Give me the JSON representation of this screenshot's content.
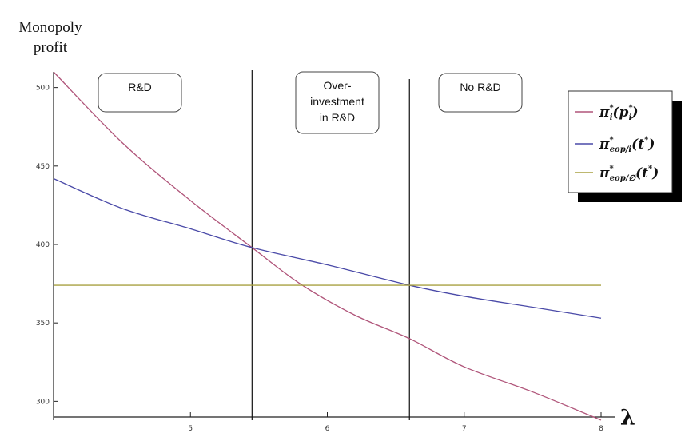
{
  "chart_data": {
    "type": "line",
    "xlabel": "λ",
    "ylabel": "Monopoly profit",
    "xlim": [
      4,
      8
    ],
    "ylim": [
      290,
      510
    ],
    "x_ticks": [
      5,
      6,
      7,
      8
    ],
    "y_ticks": [
      300,
      350,
      400,
      450,
      500
    ],
    "grid": false,
    "legend_position": "top-right",
    "series": [
      {
        "name": "π_i^*(p_i^*)",
        "color": "#b0557a",
        "x": [
          4.0,
          4.5,
          5.0,
          5.45,
          5.8,
          6.2,
          6.6,
          7.0,
          7.5,
          8.0
        ],
        "y": [
          510,
          465,
          428,
          398,
          375,
          355,
          340,
          322,
          306,
          288
        ]
      },
      {
        "name": "π_eop/i^*(t^*)",
        "color": "#4a4aa8",
        "x": [
          4.0,
          4.5,
          5.0,
          5.45,
          6.0,
          6.6,
          7.0,
          7.5,
          8.0
        ],
        "y": [
          442,
          423,
          410,
          398,
          387,
          374,
          367,
          360,
          353
        ]
      },
      {
        "name": "π_eop/∅^*(t^*)",
        "color": "#a8a040",
        "x": [
          4.0,
          8.0
        ],
        "y": [
          374,
          374
        ]
      }
    ],
    "vlines": [
      5.45,
      6.6
    ],
    "regions": [
      {
        "label_lines": [
          "R&D"
        ]
      },
      {
        "label_lines": [
          "Over-",
          "investment",
          "in R&D"
        ]
      },
      {
        "label_lines": [
          "No R&D"
        ]
      }
    ]
  }
}
